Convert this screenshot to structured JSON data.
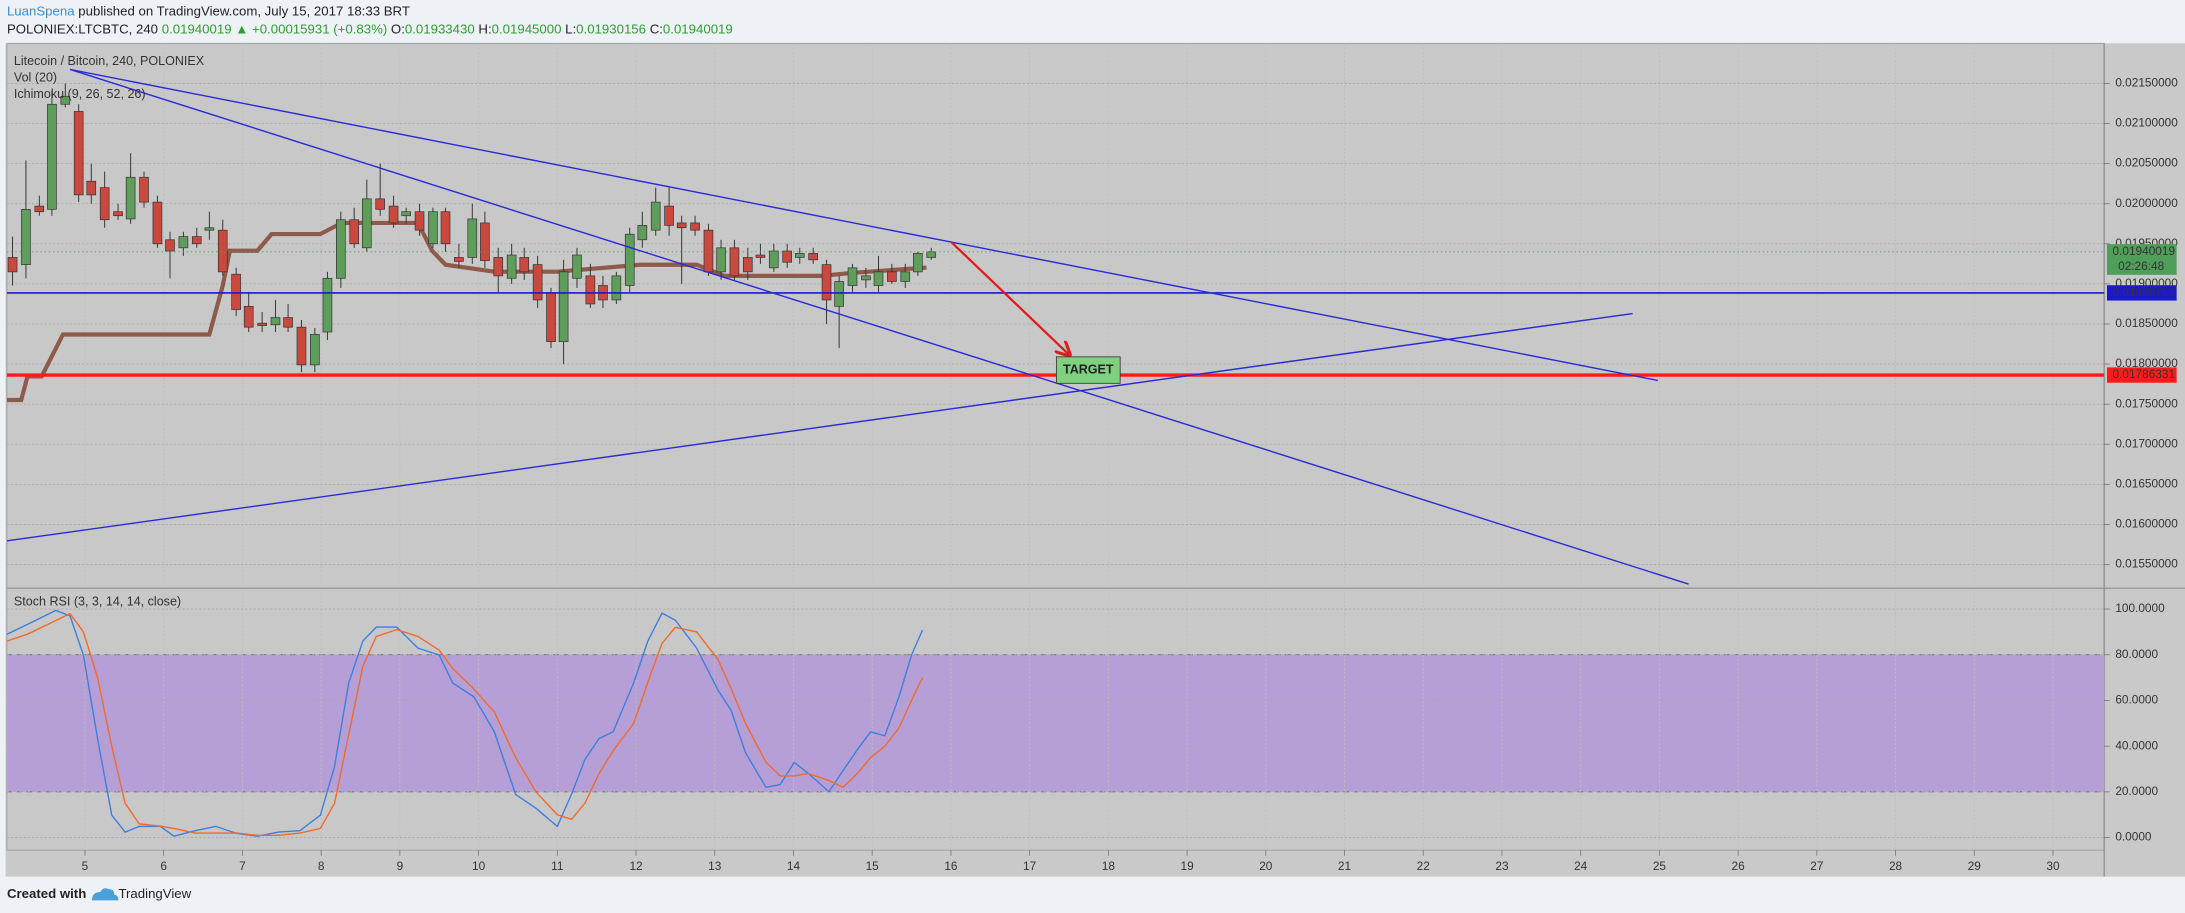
{
  "header": {
    "author": "LuanSpena",
    "published": " published on TradingView.com, July 15, 2017 18:33 BRT",
    "symbol": "POLONIEX:LTCBTC, 240 ",
    "last": "0.01940019",
    "change": " ▲ +0.00015931 (+0.83%) ",
    "o_label": "O:",
    "o": "0.01933430",
    "h_label": " H:",
    "h": "0.01945000",
    "l_label": " L:",
    "l": "0.01930156",
    "c_label": " C:",
    "c": "0.01940019"
  },
  "footer": {
    "created": "Created with",
    "brand": "TradingView"
  },
  "chart_data": [
    {
      "type": "candlestick",
      "title": "Litecoin / Bitcoin, 240, POLONIEX",
      "indicators": [
        "Vol (20)",
        "Ichimoku (9, 26, 52, 26)"
      ],
      "up_color": "#5f9e5a",
      "down_color": "#c9493f",
      "xlim": [
        4.009,
        30.65
      ],
      "ylim": [
        0.01524,
        0.022
      ],
      "yticks": [
        {
          "value": 0.0215,
          "label": "0.02150000"
        },
        {
          "value": 0.021,
          "label": "0.02100000"
        },
        {
          "value": 0.0205,
          "label": "0.02050000"
        },
        {
          "value": 0.02,
          "label": "0.02000000"
        },
        {
          "value": 0.0195,
          "label": "0.01950000"
        },
        {
          "value": 0.019,
          "label": "0.01900000"
        },
        {
          "value": 0.0185,
          "label": "0.01850000"
        },
        {
          "value": 0.018,
          "label": "0.01800000"
        },
        {
          "value": 0.0175,
          "label": "0.01750000"
        },
        {
          "value": 0.017,
          "label": "0.01700000"
        },
        {
          "value": 0.0165,
          "label": "0.01650000"
        },
        {
          "value": 0.016,
          "label": "0.01600000"
        },
        {
          "value": 0.0155,
          "label": "0.01550000"
        }
      ],
      "grid": true,
      "x": [
        4.08,
        4.25,
        4.42,
        4.58,
        4.75,
        4.92,
        5.08,
        5.25,
        5.42,
        5.58,
        5.75,
        5.92,
        6.08,
        6.25,
        6.42,
        6.58,
        6.75,
        6.92,
        7.08,
        7.25,
        7.42,
        7.58,
        7.75,
        7.92,
        8.08,
        8.25,
        8.42,
        8.58,
        8.75,
        8.92,
        9.08,
        9.25,
        9.42,
        9.58,
        9.75,
        9.92,
        10.08,
        10.25,
        10.42,
        10.58,
        10.75,
        10.92,
        11.08,
        11.25,
        11.42,
        11.58,
        11.75,
        11.92,
        12.08,
        12.25,
        12.42,
        12.58,
        12.75,
        12.92,
        13.08,
        13.25,
        13.42,
        13.58,
        13.75,
        13.92,
        14.08,
        14.25,
        14.42,
        14.58,
        14.75,
        14.92,
        15.08,
        15.25,
        15.42,
        15.58,
        15.75
      ],
      "ohlc": [
        [
          0.01933,
          0.01959,
          0.01898,
          0.01915
        ],
        [
          0.01924,
          0.02054,
          0.01907,
          0.01993
        ],
        [
          0.01997,
          0.0201,
          0.01985,
          0.0199
        ],
        [
          0.01993,
          0.02141,
          0.01985,
          0.02124
        ],
        [
          0.02124,
          0.0215,
          0.0212,
          0.02134
        ],
        [
          0.02115,
          0.02124,
          0.02002,
          0.02011
        ],
        [
          0.02028,
          0.0205,
          0.02,
          0.02011
        ],
        [
          0.0202,
          0.0204,
          0.0197,
          0.0198
        ],
        [
          0.0199,
          0.02,
          0.0198,
          0.01985
        ],
        [
          0.01981,
          0.02063,
          0.01975,
          0.02033
        ],
        [
          0.02033,
          0.0204,
          0.01995,
          0.02002
        ],
        [
          0.02002,
          0.0201,
          0.01945,
          0.0195
        ],
        [
          0.01955,
          0.01965,
          0.01907,
          0.01941
        ],
        [
          0.01945,
          0.01965,
          0.01935,
          0.01959
        ],
        [
          0.01959,
          0.0197,
          0.01945,
          0.0195
        ],
        [
          0.01967,
          0.0199,
          0.01955,
          0.0197
        ],
        [
          0.01967,
          0.0198,
          0.0191,
          0.01915
        ],
        [
          0.01912,
          0.0192,
          0.0186,
          0.01868
        ],
        [
          0.01872,
          0.0189,
          0.0184,
          0.01846
        ],
        [
          0.01851,
          0.01865,
          0.0184,
          0.01848
        ],
        [
          0.01849,
          0.0188,
          0.0184,
          0.01858
        ],
        [
          0.01858,
          0.01875,
          0.0184,
          0.01846
        ],
        [
          0.01846,
          0.01855,
          0.0179,
          0.01799
        ],
        [
          0.01799,
          0.01845,
          0.0179,
          0.01837
        ],
        [
          0.0184,
          0.01915,
          0.0183,
          0.01907
        ],
        [
          0.01907,
          0.0199,
          0.01895,
          0.0198
        ],
        [
          0.0198,
          0.01995,
          0.01945,
          0.0195
        ],
        [
          0.01945,
          0.0203,
          0.0194,
          0.02006
        ],
        [
          0.02006,
          0.0205,
          0.01985,
          0.01993
        ],
        [
          0.01997,
          0.0201,
          0.0197,
          0.01976
        ],
        [
          0.01985,
          0.01995,
          0.01975,
          0.0199
        ],
        [
          0.0199,
          0.02,
          0.0196,
          0.01967
        ],
        [
          0.0195,
          0.01995,
          0.01945,
          0.0199
        ],
        [
          0.0199,
          0.01995,
          0.0194,
          0.0195
        ],
        [
          0.01933,
          0.0195,
          0.0192,
          0.01928
        ],
        [
          0.01933,
          0.02,
          0.01925,
          0.01981
        ],
        [
          0.01976,
          0.0199,
          0.0192,
          0.01929
        ],
        [
          0.01933,
          0.01945,
          0.0189,
          0.0191
        ],
        [
          0.01907,
          0.0195,
          0.019,
          0.01936
        ],
        [
          0.01933,
          0.01945,
          0.01905,
          0.01915
        ],
        [
          0.01924,
          0.01935,
          0.0187,
          0.0188
        ],
        [
          0.01889,
          0.01895,
          0.0182,
          0.01828
        ],
        [
          0.01828,
          0.0193,
          0.018,
          0.01915
        ],
        [
          0.01907,
          0.01945,
          0.01895,
          0.01936
        ],
        [
          0.0191,
          0.01925,
          0.0187,
          0.01875
        ],
        [
          0.01898,
          0.0191,
          0.0187,
          0.0188
        ],
        [
          0.0188,
          0.01915,
          0.01875,
          0.0191
        ],
        [
          0.01898,
          0.0197,
          0.0189,
          0.01962
        ],
        [
          0.01955,
          0.0199,
          0.01945,
          0.01973
        ],
        [
          0.01967,
          0.0202,
          0.0196,
          0.02002
        ],
        [
          0.01997,
          0.0202,
          0.0196,
          0.01973
        ],
        [
          0.01976,
          0.01985,
          0.019,
          0.0197
        ],
        [
          0.01976,
          0.01985,
          0.0196,
          0.01967
        ],
        [
          0.01967,
          0.01975,
          0.0191,
          0.01915
        ],
        [
          0.01915,
          0.01955,
          0.01905,
          0.01945
        ],
        [
          0.01945,
          0.01955,
          0.01905,
          0.0191
        ],
        [
          0.01933,
          0.01945,
          0.01905,
          0.01915
        ],
        [
          0.01936,
          0.0195,
          0.01925,
          0.01933
        ],
        [
          0.0192,
          0.0195,
          0.01915,
          0.01941
        ],
        [
          0.01941,
          0.0195,
          0.0192,
          0.01927
        ],
        [
          0.01933,
          0.01945,
          0.01925,
          0.01938
        ],
        [
          0.01938,
          0.01945,
          0.01925,
          0.0193
        ],
        [
          0.01924,
          0.0193,
          0.0185,
          0.0188
        ],
        [
          0.01872,
          0.0191,
          0.0182,
          0.01903
        ],
        [
          0.01898,
          0.01925,
          0.0189,
          0.0192
        ],
        [
          0.01905,
          0.0192,
          0.01895,
          0.0191
        ],
        [
          0.01898,
          0.01935,
          0.0189,
          0.01915
        ],
        [
          0.01915,
          0.01925,
          0.019,
          0.01903
        ],
        [
          0.01903,
          0.01925,
          0.01895,
          0.01915
        ],
        [
          0.01915,
          0.0194,
          0.0191,
          0.01938
        ],
        [
          0.01933,
          0.01945,
          0.0193,
          0.0194
        ]
      ],
      "lines": [
        {
          "color": "#8e5a4a",
          "x": [
            4.01,
            4.19,
            4.27,
            4.45,
            4.72,
            4.89,
            6.58,
            6.75,
            6.84,
            7.19,
            7.37,
            7.99,
            8.26,
            9.23,
            9.41,
            9.58,
            10.2,
            11.0,
            12.06,
            12.77,
            13.12,
            14.36,
            14.72,
            15.69
          ],
          "values": [
            0.017552,
            0.017552,
            0.017847,
            0.017847,
            0.018369,
            0.018369,
            0.018369,
            0.018978,
            0.019413,
            0.019413,
            0.019621,
            0.019621,
            0.01976,
            0.01976,
            0.019413,
            0.019239,
            0.019152,
            0.019152,
            0.019239,
            0.019239,
            0.0191,
            0.0191,
            0.019135,
            0.019204
          ]
        }
      ],
      "trendlines": [
        {
          "color": "#2b2bd6",
          "x": [
            4.81,
            24.98
          ],
          "y": [
            0.021674,
            0.017796
          ]
        },
        {
          "color": "#2b2bd6",
          "x": [
            4.81,
            25.37
          ],
          "y": [
            0.021674,
            0.015257
          ]
        },
        {
          "color": "#2b2bd6",
          "x": [
            4.01,
            24.66
          ],
          "y": [
            0.015796,
            0.01863
          ]
        }
      ],
      "hlines": [
        {
          "value": 0.01888753,
          "label": "0.01888753",
          "color": "#1a1acc"
        },
        {
          "value": 0.01786331,
          "label": "0.01786331",
          "color": "#ff1a1a"
        }
      ],
      "last_price": {
        "value": 0.01940019,
        "label": "0.01940019",
        "countdown": "02:26:48",
        "color": "#4f9e5a"
      },
      "arrow": {
        "color": "#e01b1b",
        "x": [
          16.01,
          17.51
        ],
        "y": [
          0.019517,
          0.018108
        ]
      },
      "target": {
        "label": "TARGET",
        "color": "#7fd17f",
        "x": [
          17.34,
          18.15
        ],
        "y": [
          0.01809,
          0.01776
        ]
      }
    },
    {
      "type": "line",
      "title": "Stoch RSI (3, 3, 14, 14, close)",
      "xlim": [
        4.009,
        30.65
      ],
      "xticks": [
        5,
        6,
        7,
        8,
        9,
        10,
        11,
        12,
        13,
        14,
        15,
        16,
        17,
        18,
        19,
        20,
        21,
        22,
        23,
        24,
        25,
        26,
        27,
        28,
        29,
        30
      ],
      "ylim": [
        -5.5,
        107.3
      ],
      "yticks": [
        {
          "value": 100,
          "label": "100.0000"
        },
        {
          "value": 80,
          "label": "80.0000"
        },
        {
          "value": 60,
          "label": "60.0000"
        },
        {
          "value": 40,
          "label": "40.0000"
        },
        {
          "value": 20,
          "label": "20.0000"
        },
        {
          "value": 0,
          "label": "0.0000"
        }
      ],
      "band": [
        20,
        80
      ],
      "band_color": "#b69fd6",
      "x": [
        4.01,
        4.27,
        4.63,
        4.81,
        4.98,
        5.16,
        5.34,
        5.51,
        5.69,
        5.96,
        6.13,
        6.4,
        6.66,
        6.93,
        7.19,
        7.46,
        7.73,
        7.99,
        8.17,
        8.35,
        8.53,
        8.7,
        8.96,
        9.23,
        9.5,
        9.67,
        9.94,
        10.2,
        10.47,
        10.73,
        11.0,
        11.18,
        11.35,
        11.53,
        11.71,
        11.97,
        12.15,
        12.33,
        12.5,
        12.77,
        13.04,
        13.21,
        13.39,
        13.65,
        13.83,
        14.01,
        14.19,
        14.45,
        14.63,
        14.81,
        14.98,
        15.16,
        15.34,
        15.5,
        15.64
      ],
      "series": [
        {
          "color": "#3d7fe0",
          "values": [
            89.0,
            93.3,
            99.4,
            97.0,
            79.9,
            43.3,
            9.8,
            2.4,
            4.9,
            4.9,
            0.6,
            3.0,
            4.9,
            1.8,
            0.6,
            2.4,
            3.0,
            9.8,
            31.1,
            67.7,
            86.0,
            92.1,
            92.1,
            82.9,
            79.9,
            67.7,
            61.6,
            46.3,
            18.9,
            12.8,
            4.9,
            18.9,
            34.1,
            43.3,
            46.3,
            67.7,
            86.0,
            98.2,
            95.1,
            82.9,
            64.6,
            55.5,
            37.2,
            22.0,
            23.2,
            32.9,
            28.0,
            20.1,
            29.3,
            38.4,
            46.3,
            44.5,
            61.6,
            79.9,
            90.9
          ]
        },
        {
          "color": "#f26a2b",
          "values": [
            86,
            89,
            95,
            98,
            90,
            70,
            40,
            15,
            6,
            5,
            4,
            2,
            2,
            2,
            1,
            1,
            2,
            4,
            15,
            45,
            75,
            88,
            91,
            88,
            82,
            74,
            65,
            55,
            35,
            20,
            10,
            8,
            15,
            28,
            38,
            50,
            68,
            85,
            92,
            90,
            78,
            65,
            50,
            33,
            27,
            27,
            28,
            25,
            22,
            28,
            35,
            40,
            48,
            60,
            70
          ]
        }
      ]
    }
  ]
}
